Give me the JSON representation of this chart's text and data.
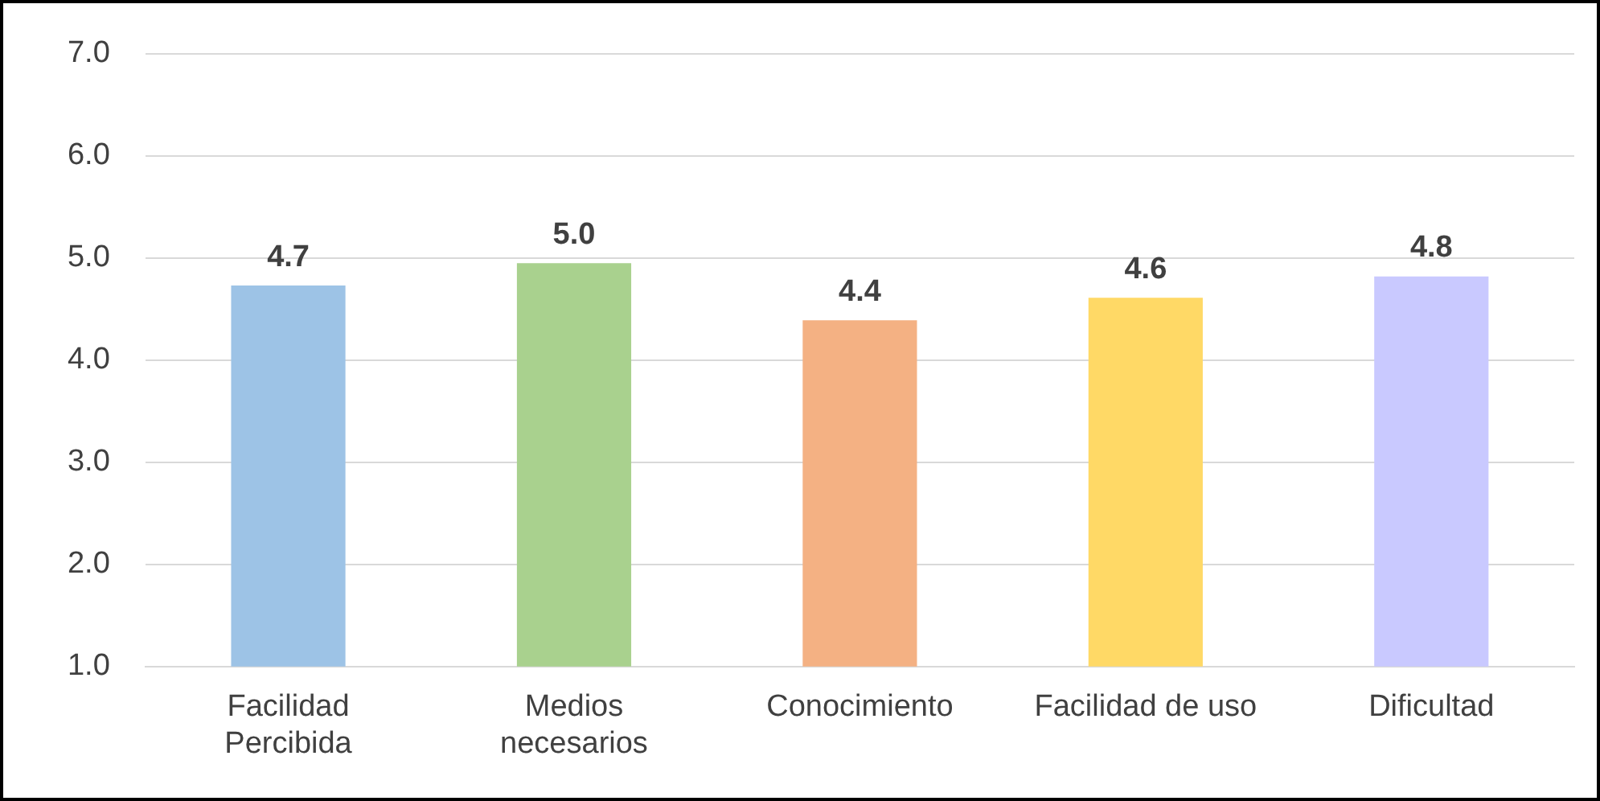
{
  "chart_data": {
    "type": "bar",
    "categories": [
      "Facilidad\nPercibida",
      "Medios\nnecesarios",
      "Conocimiento",
      "Facilidad de uso",
      "Dificultad"
    ],
    "values": [
      4.73,
      4.95,
      4.39,
      4.61,
      4.82
    ],
    "colors": [
      "#9dc3e6",
      "#a9d18e",
      "#f4b183",
      "#ffd966",
      "#c9c9ff"
    ],
    "value_labels": [
      "4.7",
      "5.0",
      "4.4",
      "4.6",
      "4.8"
    ],
    "ylim": [
      1,
      7
    ],
    "yticks": [
      {
        "value": 1,
        "label": "1.0"
      },
      {
        "value": 2,
        "label": "2.0"
      },
      {
        "value": 3,
        "label": "3.0"
      },
      {
        "value": 4,
        "label": "4.0"
      },
      {
        "value": 5,
        "label": "5.0"
      },
      {
        "value": 6,
        "label": "6.0"
      },
      {
        "value": 7,
        "label": "7.0"
      }
    ],
    "grid": "y",
    "legend": false
  }
}
